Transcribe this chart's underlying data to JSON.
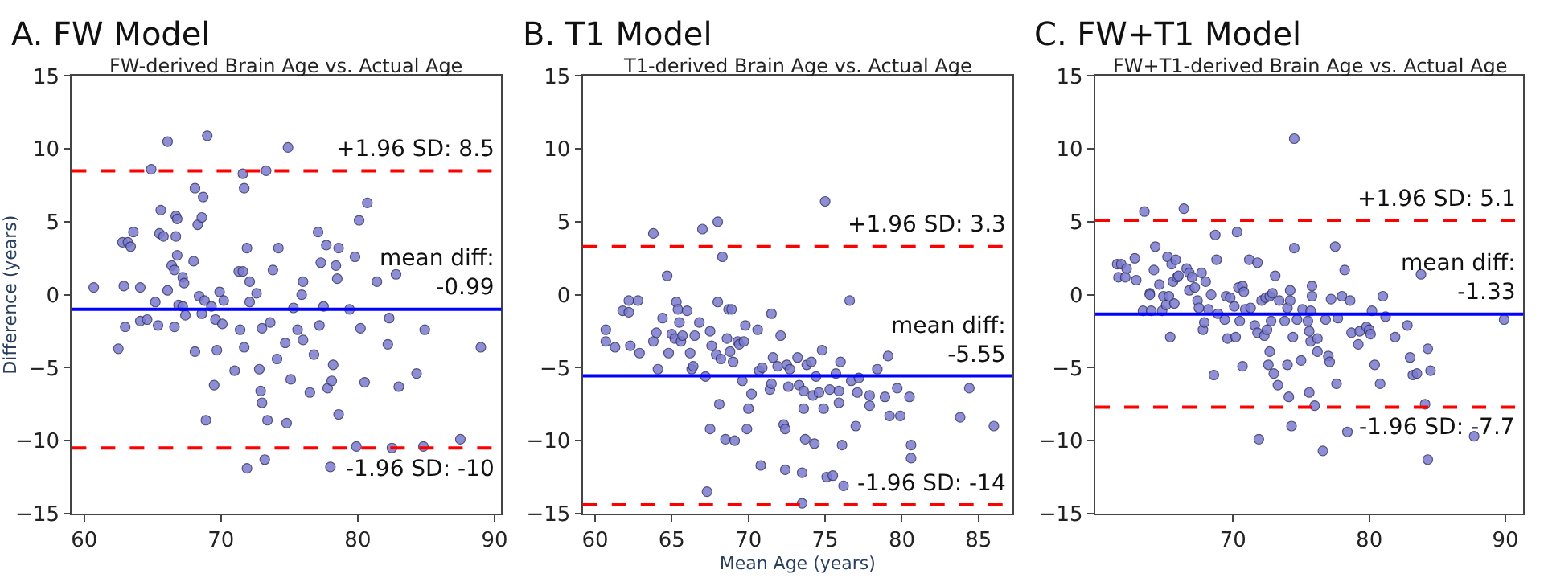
{
  "chart_data": [
    {
      "type": "scatter",
      "title": "A. FW Model",
      "subtitle": "FW-derived Brain Age vs. Actual Age",
      "ylabel": "Difference (years)",
      "marker": "circle",
      "color": "#7b7bd0",
      "x": [
        60.7,
        62.5,
        62.8,
        62.9,
        63.0,
        63.2,
        63.4,
        63.6,
        64.1,
        64.1,
        64.6,
        64.9,
        65.2,
        65.4,
        65.6,
        65.5,
        65.8,
        66.1,
        66.1,
        66.4,
        66.6,
        66.6,
        66.7,
        66.7,
        66.8,
        66.8,
        66.9,
        67.2,
        67.2,
        67.3,
        67.4,
        68.0,
        68.1,
        68.1,
        68.3,
        68.4,
        68.6,
        68.6,
        68.7,
        68.8,
        68.9,
        69.0,
        69.3,
        69.5,
        69.6,
        69.7,
        69.9,
        70.1,
        70.2,
        71.0,
        71.3,
        71.4,
        71.6,
        71.7,
        71.6,
        71.7,
        71.9,
        71.9,
        72.1,
        72.1,
        72.6,
        72.8,
        72.9,
        73.0,
        73.0,
        73.2,
        73.3,
        73.4,
        73.6,
        73.8,
        74.1,
        74.2,
        74.7,
        74.8,
        74.9,
        75.1,
        75.3,
        75.6,
        75.9,
        76.0,
        76.0,
        76.5,
        76.8,
        77.1,
        77.2,
        77.3,
        77.5,
        77.7,
        77.8,
        78.0,
        78.1,
        78.2,
        78.4,
        78.5,
        78.6,
        78.6,
        79.4,
        79.8,
        79.9,
        80.1,
        80.2,
        80.5,
        80.7,
        81.4,
        82.2,
        82.3,
        82.8,
        83.0,
        82.5,
        84.3,
        84.8,
        84.9,
        87.5,
        89.0
      ],
      "values": [
        0.5,
        -3.7,
        3.6,
        0.6,
        -2.2,
        3.6,
        3.3,
        4.3,
        0.5,
        -1.8,
        -1.7,
        8.6,
        -0.5,
        -2.1,
        5.8,
        4.2,
        4.0,
        0.3,
        10.5,
        2.0,
        1.7,
        -2.2,
        4.0,
        5.4,
        5.2,
        2.7,
        -0.7,
        -0.8,
        1.2,
        0.8,
        -1.4,
        2.3,
        -3.9,
        7.3,
        4.8,
        -0.1,
        -1.3,
        5.3,
        6.7,
        -0.4,
        -8.6,
        10.9,
        -0.8,
        -6.2,
        -1.7,
        -3.8,
        0.2,
        -2.0,
        -0.4,
        -5.2,
        1.6,
        -2.4,
        8.3,
        7.3,
        1.6,
        -3.6,
        -11.9,
        3.2,
        0.9,
        -0.5,
        0.1,
        -5.1,
        -6.6,
        -7.4,
        -2.3,
        -11.3,
        8.5,
        -8.6,
        -1.9,
        1.7,
        -4.4,
        3.2,
        -3.3,
        -8.8,
        10.1,
        -5.8,
        -0.9,
        -2.4,
        0.0,
        0.9,
        -3.1,
        -6.7,
        -4.1,
        4.3,
        -2.1,
        2.2,
        -0.8,
        3.4,
        -6.4,
        -11.8,
        -5.9,
        -4.8,
        2.0,
        1.1,
        3.2,
        -8.2,
        -1.0,
        2.6,
        -10.4,
        5.1,
        -2.3,
        -6.0,
        6.3,
        0.9,
        -3.4,
        -1.6,
        1.4,
        -6.3,
        -10.5,
        -5.4,
        -10.4,
        -2.4,
        -9.9,
        -3.6
      ],
      "xlim": [
        59.1,
        90.5
      ],
      "xticks": [
        60,
        70,
        80,
        90
      ],
      "ylim": [
        -15,
        15
      ],
      "yticks": [
        {
          "value": -15,
          "label": "−15"
        },
        {
          "value": -10,
          "label": "−10"
        },
        {
          "value": -5,
          "label": "−5"
        },
        0,
        5,
        10,
        15
      ],
      "ref_lines": [
        {
          "axis": "y",
          "value": 8.5,
          "label": "+1.96 SD: 8.5",
          "color": "#ff0000",
          "line_style": "dashed"
        },
        {
          "axis": "y",
          "value": -0.99,
          "label": "mean diff:\n-0.99",
          "color": "#0000ff",
          "line_style": "solid"
        },
        {
          "axis": "y",
          "value": -10.5,
          "label": "-1.96 SD: -10",
          "color": "#ff0000",
          "line_style": "dashed"
        }
      ]
    },
    {
      "type": "scatter",
      "title": "B. T1 Model",
      "subtitle": "T1-derived Brain Age vs. Actual Age",
      "xlabel": "Mean Age (years)",
      "marker": "circle",
      "color": "#7b7bd0",
      "x": [
        60.7,
        60.7,
        61.3,
        61.8,
        62.2,
        62.2,
        62.3,
        62.8,
        62.9,
        63.8,
        63.8,
        64.0,
        64.1,
        64.4,
        64.7,
        64.8,
        65.0,
        65.2,
        65.3,
        65.4,
        65.5,
        65.6,
        65.7,
        66.0,
        66.2,
        66.3,
        66.4,
        66.5,
        66.8,
        67.0,
        67.2,
        67.3,
        67.5,
        67.5,
        67.6,
        67.9,
        68.0,
        68.0,
        68.1,
        68.2,
        68.3,
        68.5,
        68.6,
        68.7,
        68.8,
        68.9,
        69.0,
        69.1,
        69.3,
        69.4,
        69.6,
        69.7,
        69.8,
        69.9,
        70.0,
        70.2,
        70.6,
        70.7,
        70.8,
        70.9,
        71.4,
        71.5,
        71.5,
        71.6,
        71.9,
        72.1,
        72.3,
        72.4,
        72.4,
        72.5,
        72.6,
        72.7,
        73.2,
        73.3,
        73.5,
        73.5,
        73.6,
        73.6,
        73.7,
        73.8,
        74.1,
        74.2,
        74.3,
        74.4,
        74.6,
        74.8,
        74.9,
        75.0,
        75.1,
        75.3,
        75.5,
        75.7,
        75.9,
        76.0,
        75.9,
        76.2,
        76.6,
        76.1,
        76.7,
        77.0,
        77.1,
        77.2,
        77.9,
        77.9,
        78.4,
        78.9,
        79.1,
        79.2,
        79.7,
        79.9,
        80.5,
        80.6,
        80.6,
        83.8,
        84.4,
        86.0
      ],
      "values": [
        -2.4,
        -3.2,
        -3.6,
        -1.1,
        -0.4,
        -1.2,
        -3.5,
        -0.4,
        -4.0,
        4.2,
        -3.2,
        -2.6,
        -5.1,
        -1.6,
        1.3,
        -4.0,
        -2.7,
        -3.0,
        -0.5,
        -1.0,
        -1.9,
        -3.2,
        -2.8,
        -1.1,
        -4.0,
        -5.1,
        -4.9,
        -2.8,
        -1.9,
        4.5,
        -5.6,
        -13.5,
        -2.5,
        -9.2,
        -3.5,
        -4.1,
        5.0,
        -0.5,
        -7.5,
        -4.4,
        2.6,
        -9.9,
        -3.0,
        -1.0,
        -3.9,
        -1.0,
        -4.6,
        -10.0,
        -3.2,
        -3.4,
        -5.9,
        -3.2,
        -2.1,
        -9.2,
        -7.8,
        -6.8,
        -2.4,
        -5.2,
        -11.7,
        -5.0,
        -6.5,
        -1.3,
        -6.1,
        -4.3,
        -4.9,
        -2.8,
        -8.9,
        -12.0,
        -9.2,
        -4.8,
        -6.3,
        -5.1,
        -4.3,
        -6.2,
        -12.2,
        -14.3,
        -7.8,
        -6.6,
        -9.9,
        -4.8,
        -4.6,
        -6.9,
        -10.2,
        -5.6,
        -6.7,
        -3.8,
        -7.8,
        6.4,
        -12.5,
        -6.5,
        -12.4,
        -5.4,
        -7.4,
        -4.6,
        -6.6,
        -13.1,
        -0.4,
        -10.3,
        -5.9,
        -9.0,
        -6.7,
        -5.7,
        -6.9,
        -7.6,
        -5.1,
        -7.0,
        -4.2,
        -8.3,
        -6.4,
        -8.3,
        -7.0,
        -10.3,
        -11.2,
        -8.4,
        -6.4,
        -9.0
      ],
      "xlim": [
        59.2,
        87.2
      ],
      "xticks": [
        60,
        65,
        70,
        75,
        80,
        85
      ],
      "ylim": [
        -15,
        15
      ],
      "yticks": [
        {
          "value": -15,
          "label": "−15"
        },
        {
          "value": -10,
          "label": "−10"
        },
        {
          "value": -5,
          "label": "−5"
        },
        0,
        5,
        10,
        15
      ],
      "ref_lines": [
        {
          "axis": "y",
          "value": 3.3,
          "label": "+1.96 SD: 3.3",
          "color": "#ff0000",
          "line_style": "dashed"
        },
        {
          "axis": "y",
          "value": -5.55,
          "label": "mean diff:\n-5.55",
          "color": "#0000ff",
          "line_style": "solid"
        },
        {
          "axis": "y",
          "value": -14.4,
          "label": "-1.96 SD: -14",
          "color": "#ff0000",
          "line_style": "dashed"
        }
      ]
    },
    {
      "type": "scatter",
      "title": "C. FW+T1 Model",
      "subtitle": "FW+T1-derived Brain Age vs. Actual Age",
      "marker": "circle",
      "color": "#7b7bd0",
      "x": [
        61.5,
        61.6,
        61.8,
        62.1,
        62.2,
        62.8,
        62.9,
        63.5,
        63.4,
        63.9,
        63.9,
        64.0,
        64.2,
        64.3,
        64.6,
        64.8,
        64.9,
        65.1,
        65.2,
        65.3,
        65.4,
        65.5,
        65.6,
        65.7,
        65.8,
        65.9,
        66.0,
        66.4,
        66.6,
        66.8,
        66.8,
        67.0,
        67.2,
        67.4,
        67.5,
        67.7,
        67.8,
        67.9,
        68.0,
        68.2,
        68.4,
        68.6,
        68.7,
        68.8,
        68.9,
        69.4,
        69.5,
        69.6,
        69.8,
        70.1,
        70.2,
        70.3,
        70.4,
        70.5,
        70.7,
        70.7,
        70.8,
        70.9,
        71.2,
        71.3,
        71.6,
        71.8,
        71.8,
        71.9,
        72.1,
        72.3,
        72.4,
        72.5,
        72.6,
        72.7,
        72.7,
        72.8,
        72.9,
        73.0,
        73.1,
        73.3,
        73.4,
        73.8,
        74.0,
        74.0,
        74.1,
        74.2,
        74.2,
        74.3,
        74.4,
        74.5,
        74.5,
        74.7,
        75.1,
        75.0,
        75.5,
        75.6,
        75.6,
        75.7,
        75.7,
        75.8,
        75.8,
        76.0,
        76.2,
        76.2,
        76.6,
        76.8,
        77.0,
        77.1,
        77.2,
        77.5,
        77.6,
        77.7,
        78.0,
        78.2,
        78.4,
        78.6,
        78.7,
        79.2,
        79.3,
        79.8,
        80.0,
        80.1,
        80.2,
        80.4,
        80.8,
        81.0,
        81.2,
        81.9,
        82.8,
        83.0,
        83.2,
        83.5,
        83.8,
        84.1,
        84.3,
        84.3,
        84.5,
        87.7,
        89.9
      ],
      "values": [
        2.1,
        1.2,
        2.1,
        1.2,
        1.8,
        2.5,
        1.0,
        5.7,
        -1.1,
        0.1,
        0.0,
        -1.1,
        1.7,
        3.3,
        0.7,
        -1.1,
        -0.1,
        -0.7,
        2.6,
        -0.1,
        -2.9,
        2.1,
        0.9,
        -0.6,
        2.4,
        1.2,
        1.3,
        5.9,
        1.8,
        1.5,
        0.3,
        1.2,
        0.5,
        -0.4,
        -0.9,
        1.5,
        -2.4,
        -1.9,
        0.9,
        -1.0,
        0.0,
        -5.5,
        4.1,
        2.4,
        -1.3,
        -1.7,
        -0.1,
        -3.0,
        -0.2,
        -0.8,
        -2.9,
        4.3,
        0.5,
        -1.8,
        -4.9,
        0.6,
        0.2,
        -1.0,
        2.4,
        -0.9,
        -2.1,
        2.2,
        -2.6,
        -9.9,
        -0.4,
        -2.8,
        -0.2,
        -2.4,
        -4.8,
        -3.9,
        -0.1,
        -1.8,
        0.1,
        -5.4,
        1.3,
        -6.2,
        -0.4,
        -1.8,
        -4.8,
        -0.9,
        -7.0,
        0.3,
        -0.4,
        -9.0,
        -2.9,
        3.2,
        10.7,
        -1.7,
        -1.0,
        -4.5,
        -1.8,
        -2.5,
        -6.7,
        -1.1,
        -3.2,
        0.6,
        -0.1,
        -7.6,
        -3.0,
        -3.9,
        -10.7,
        -1.7,
        -4.2,
        -4.6,
        -0.3,
        3.3,
        -6.1,
        -1.6,
        -0.1,
        1.7,
        -9.4,
        -0.4,
        -2.6,
        -3.4,
        -2.5,
        -2.2,
        -2.4,
        -2.7,
        -1.1,
        -4.8,
        -6.1,
        -0.1,
        -1.5,
        -2.9,
        -2.1,
        -4.3,
        -5.5,
        -5.4,
        1.4,
        -7.5,
        -3.7,
        -11.3,
        -5.2,
        -9.7,
        -1.7
      ],
      "xlim": [
        59.9,
        91.3
      ],
      "xticks": [
        70,
        80,
        90
      ],
      "ylim": [
        -15,
        15
      ],
      "yticks": [
        {
          "value": -15,
          "label": "−15"
        },
        {
          "value": -10,
          "label": "−10"
        },
        {
          "value": -5,
          "label": "−5"
        },
        0,
        5,
        10,
        15
      ],
      "ref_lines": [
        {
          "axis": "y",
          "value": 5.1,
          "label": "+1.96 SD: 5.1",
          "color": "#ff0000",
          "line_style": "dashed"
        },
        {
          "axis": "y",
          "value": -1.33,
          "label": "mean diff:\n-1.33",
          "color": "#0000ff",
          "line_style": "solid"
        },
        {
          "axis": "y",
          "value": -7.7,
          "label": "-1.96 SD: -7.7",
          "color": "#ff0000",
          "line_style": "dashed"
        }
      ]
    }
  ]
}
